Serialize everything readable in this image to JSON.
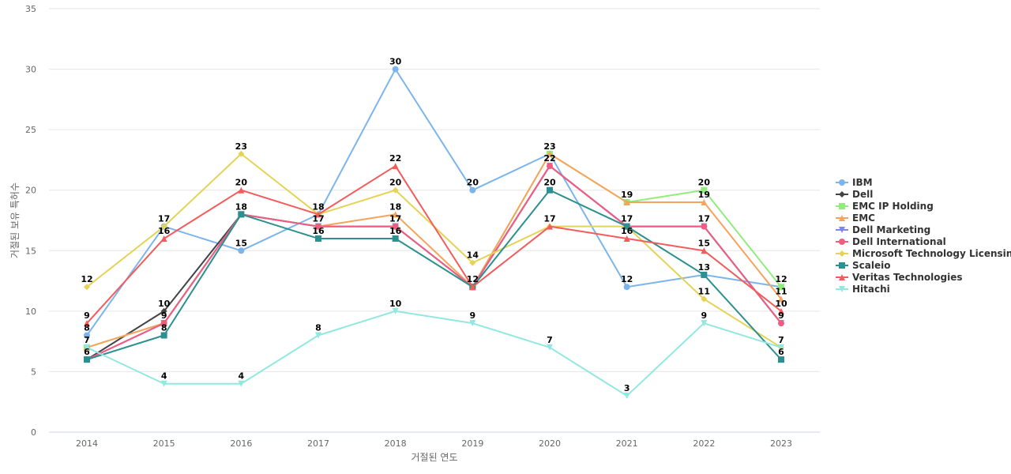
{
  "chart_data": {
    "type": "line",
    "xlabel": "거절된 연도",
    "ylabel": "거절된 보유 특허수",
    "ylim": [
      0,
      35
    ],
    "yticks": [
      0,
      5,
      10,
      15,
      20,
      25,
      30,
      35
    ],
    "categories": [
      "2014",
      "2015",
      "2016",
      "2017",
      "2018",
      "2019",
      "2020",
      "2021",
      "2022",
      "2023"
    ],
    "grid": true,
    "legend_position": "right",
    "series": [
      {
        "name": "IBM",
        "color": "#7cb5ec",
        "marker": "circle",
        "values": [
          8,
          17,
          15,
          18,
          30,
          20,
          23,
          12,
          13,
          12
        ]
      },
      {
        "name": "Dell",
        "color": "#434348",
        "marker": "diamond",
        "values": [
          6,
          10,
          18,
          17,
          17,
          12,
          22,
          17,
          17,
          9
        ]
      },
      {
        "name": "EMC IP Holding",
        "color": "#90ed7d",
        "marker": "square",
        "values": [
          7,
          9,
          18,
          17,
          17,
          12,
          23,
          19,
          20,
          12
        ]
      },
      {
        "name": "EMC",
        "color": "#f7a35c",
        "marker": "triangle",
        "values": [
          7,
          9,
          18,
          17,
          18,
          12,
          23,
          19,
          19,
          11
        ]
      },
      {
        "name": "Dell Marketing",
        "color": "#8085e9",
        "marker": "triangle-down",
        "values": [
          6,
          9,
          18,
          17,
          17,
          12,
          22,
          17,
          17,
          9
        ]
      },
      {
        "name": "Dell International",
        "color": "#f15c80",
        "marker": "circle",
        "values": [
          6,
          9,
          18,
          17,
          17,
          12,
          22,
          17,
          17,
          9
        ]
      },
      {
        "name": "Microsoft Technology Licensing",
        "color": "#e4d354",
        "marker": "diamond",
        "values": [
          12,
          17,
          23,
          18,
          20,
          14,
          17,
          17,
          11,
          7
        ]
      },
      {
        "name": "Scaleio",
        "color": "#2b908f",
        "marker": "square",
        "values": [
          6,
          8,
          18,
          16,
          16,
          12,
          20,
          17,
          13,
          6
        ]
      },
      {
        "name": "Veritas Technologies",
        "color": "#f45b5b",
        "marker": "triangle",
        "values": [
          9,
          16,
          20,
          18,
          22,
          12,
          17,
          16,
          15,
          10
        ]
      },
      {
        "name": "Hitachi",
        "color": "#91e8e1",
        "marker": "triangle-down",
        "values": [
          7,
          4,
          4,
          8,
          10,
          9,
          7,
          3,
          9,
          7
        ]
      }
    ],
    "data_labels": [
      {
        "x": "2014",
        "values": [
          12,
          9,
          8,
          7,
          6
        ]
      },
      {
        "x": "2015",
        "values": [
          17,
          16,
          10,
          9,
          8,
          4
        ]
      },
      {
        "x": "2016",
        "values": [
          23,
          20,
          18,
          15,
          4
        ]
      },
      {
        "x": "2017",
        "values": [
          18,
          17,
          16,
          8
        ]
      },
      {
        "x": "2018",
        "values": [
          30,
          22,
          20,
          18,
          17,
          16,
          10
        ]
      },
      {
        "x": "2019",
        "values": [
          20,
          14,
          12,
          9
        ]
      },
      {
        "x": "2020",
        "values": [
          23,
          22,
          20,
          17,
          7
        ]
      },
      {
        "x": "2021",
        "values": [
          19,
          17,
          16,
          12,
          3
        ]
      },
      {
        "x": "2022",
        "values": [
          20,
          19,
          17,
          15,
          13,
          11,
          9
        ]
      },
      {
        "x": "2023",
        "values": [
          12,
          11,
          10,
          9,
          7,
          6
        ]
      }
    ]
  }
}
